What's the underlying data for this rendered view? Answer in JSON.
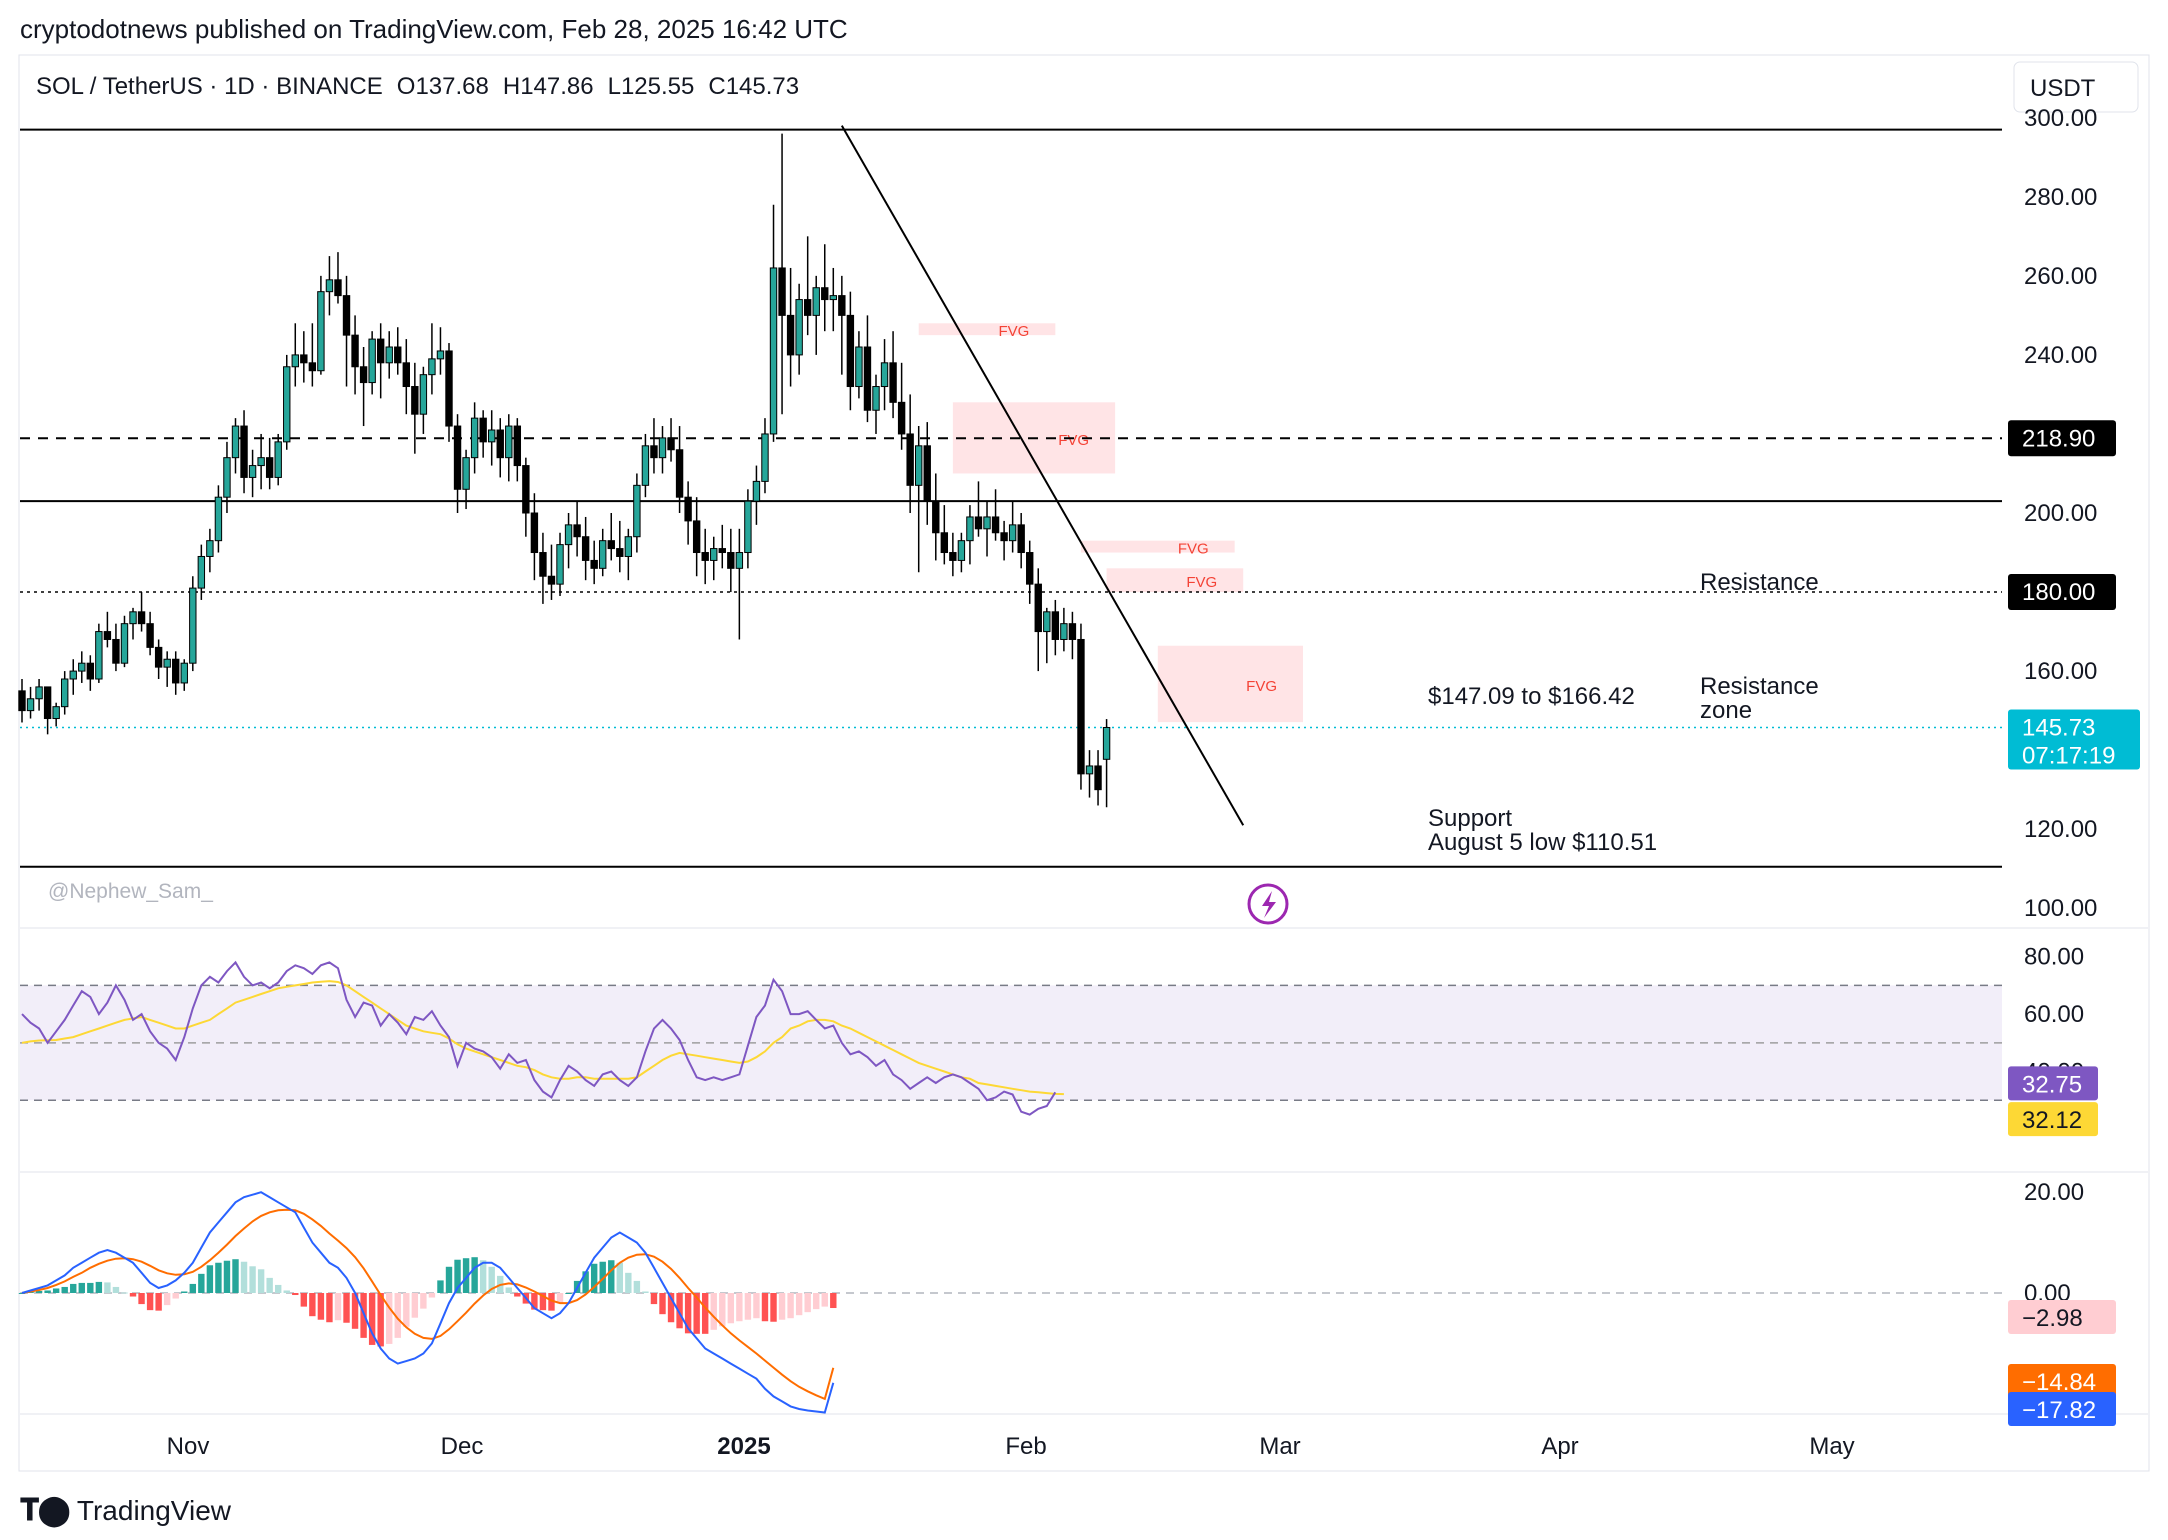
{
  "header": {
    "published": "cryptodotnews published on TradingView.com, Feb 28, 2025 16:42 UTC"
  },
  "footer": {
    "brand": "TradingView"
  },
  "chart_data": {
    "type": "candlestick",
    "symbol_line": "SOL / TetherUS · 1D · BINANCE",
    "ohlc": {
      "open": "O137.68",
      "high": "H147.86",
      "low": "L125.55",
      "close": "C145.73"
    },
    "currency": "USDT",
    "watermark": "@Nephew_Sam_",
    "x_labels": [
      "Nov",
      "Dec",
      "2025",
      "Feb",
      "Mar",
      "Apr",
      "May"
    ],
    "price_axis": {
      "ylim": [
        95,
        305
      ],
      "ticks": [
        {
          "v": 300,
          "label": "300.00"
        },
        {
          "v": 280,
          "label": "280.00"
        },
        {
          "v": 260,
          "label": "260.00"
        },
        {
          "v": 240,
          "label": "240.00"
        },
        {
          "v": 200,
          "label": "200.00"
        },
        {
          "v": 160,
          "label": "160.00"
        },
        {
          "v": 120,
          "label": "120.00"
        },
        {
          "v": 100,
          "label": "100.00"
        }
      ]
    },
    "price_badges": [
      {
        "v": 218.9,
        "label": "218.90",
        "color": "#000000"
      },
      {
        "v": 180,
        "label": "180.00",
        "color": "#000000"
      },
      {
        "v": 145.73,
        "label": "145.73",
        "sub": "07:17:19",
        "color": "#00bcd4"
      }
    ],
    "levels": [
      {
        "v": 297,
        "style": "solid"
      },
      {
        "v": 218.9,
        "style": "dashed"
      },
      {
        "v": 203,
        "style": "solid"
      },
      {
        "v": 180,
        "style": "dotted"
      },
      {
        "v": 145.73,
        "style": "last"
      },
      {
        "v": 110.51,
        "style": "solid"
      }
    ],
    "fvg": [
      {
        "x0": 105,
        "x1": 121,
        "y0": 245,
        "y1": 248,
        "label": "FVG"
      },
      {
        "x0": 109,
        "x1": 128,
        "y0": 210,
        "y1": 228,
        "label": "FVG"
      },
      {
        "x0": 124,
        "x1": 142,
        "y0": 190,
        "y1": 193,
        "label": "FVG"
      },
      {
        "x0": 127,
        "x1": 143,
        "y0": 180,
        "y1": 186,
        "label": "FVG"
      },
      {
        "x0": 133,
        "x1": 150,
        "y0": 147.09,
        "y1": 166.42,
        "label": "FVG"
      }
    ],
    "trendline": {
      "x0": 96,
      "y0": 298,
      "x1": 143,
      "y1": 121
    },
    "annotations": {
      "resistance": "Resistance",
      "range_text": "$147.09 to $166.42",
      "resistance_zone_1": "Resistance",
      "resistance_zone_2": "zone",
      "support_1": "Support",
      "support_2": "August 5 low $110.51"
    },
    "candles": [
      [
        155,
        158,
        147,
        150
      ],
      [
        150,
        156,
        148,
        153
      ],
      [
        153,
        158,
        150,
        156
      ],
      [
        156,
        155,
        144,
        148
      ],
      [
        148,
        152,
        146,
        151
      ],
      [
        151,
        160,
        149,
        158
      ],
      [
        158,
        163,
        154,
        160
      ],
      [
        160,
        165,
        157,
        162
      ],
      [
        162,
        164,
        155,
        158
      ],
      [
        158,
        172,
        157,
        170
      ],
      [
        170,
        175,
        166,
        168
      ],
      [
        168,
        172,
        160,
        162
      ],
      [
        162,
        174,
        161,
        172
      ],
      [
        172,
        176,
        168,
        175
      ],
      [
        175,
        180,
        170,
        172
      ],
      [
        172,
        175,
        164,
        166
      ],
      [
        166,
        168,
        158,
        161
      ],
      [
        161,
        165,
        156,
        163
      ],
      [
        163,
        165,
        154,
        157
      ],
      [
        157,
        163,
        155,
        162
      ],
      [
        162,
        184,
        160,
        181
      ],
      [
        181,
        192,
        178,
        189
      ],
      [
        189,
        196,
        185,
        193
      ],
      [
        193,
        207,
        190,
        204
      ],
      [
        204,
        218,
        200,
        214
      ],
      [
        214,
        224,
        210,
        222
      ],
      [
        222,
        226,
        205,
        209
      ],
      [
        209,
        216,
        204,
        212
      ],
      [
        212,
        220,
        206,
        214
      ],
      [
        214,
        219,
        206,
        209
      ],
      [
        209,
        220,
        207,
        218
      ],
      [
        218,
        240,
        216,
        237
      ],
      [
        237,
        248,
        232,
        240
      ],
      [
        240,
        246,
        233,
        238
      ],
      [
        238,
        248,
        232,
        236
      ],
      [
        236,
        260,
        235,
        256
      ],
      [
        256,
        265,
        250,
        259
      ],
      [
        259,
        266,
        253,
        255
      ],
      [
        255,
        260,
        232,
        245
      ],
      [
        245,
        250,
        230,
        237
      ],
      [
        237,
        242,
        222,
        233
      ],
      [
        233,
        246,
        230,
        244
      ],
      [
        244,
        248,
        229,
        238
      ],
      [
        238,
        246,
        234,
        242
      ],
      [
        242,
        247,
        235,
        238
      ],
      [
        238,
        244,
        225,
        232
      ],
      [
        232,
        238,
        215,
        225
      ],
      [
        225,
        237,
        220,
        235
      ],
      [
        235,
        248,
        230,
        239
      ],
      [
        239,
        247,
        235,
        241
      ],
      [
        241,
        243,
        218,
        222
      ],
      [
        222,
        225,
        200,
        206
      ],
      [
        206,
        216,
        201,
        214
      ],
      [
        214,
        228,
        210,
        224
      ],
      [
        224,
        226,
        214,
        218
      ],
      [
        218,
        226,
        212,
        221
      ],
      [
        221,
        224,
        209,
        214
      ],
      [
        214,
        225,
        208,
        222
      ],
      [
        222,
        224,
        208,
        212
      ],
      [
        212,
        214,
        194,
        200
      ],
      [
        200,
        205,
        183,
        190
      ],
      [
        190,
        195,
        177,
        184
      ],
      [
        184,
        192,
        178,
        182
      ],
      [
        182,
        195,
        179,
        192
      ],
      [
        192,
        200,
        186,
        197
      ],
      [
        197,
        203,
        189,
        194
      ],
      [
        194,
        199,
        183,
        188
      ],
      [
        188,
        193,
        182,
        186
      ],
      [
        186,
        196,
        184,
        193
      ],
      [
        193,
        200,
        188,
        191
      ],
      [
        191,
        198,
        185,
        189
      ],
      [
        189,
        196,
        183,
        194
      ],
      [
        194,
        210,
        190,
        207
      ],
      [
        207,
        220,
        204,
        217
      ],
      [
        217,
        224,
        210,
        214
      ],
      [
        214,
        222,
        210,
        219
      ],
      [
        219,
        224,
        213,
        216
      ],
      [
        216,
        222,
        200,
        204
      ],
      [
        204,
        208,
        192,
        198
      ],
      [
        198,
        204,
        184,
        190
      ],
      [
        190,
        196,
        182,
        188
      ],
      [
        188,
        194,
        183,
        191
      ],
      [
        191,
        197,
        186,
        190
      ],
      [
        190,
        196,
        180,
        186
      ],
      [
        186,
        196,
        168,
        190
      ],
      [
        190,
        206,
        186,
        203
      ],
      [
        203,
        212,
        197,
        208
      ],
      [
        208,
        224,
        205,
        220
      ],
      [
        220,
        278,
        218,
        262
      ],
      [
        262,
        296,
        225,
        250
      ],
      [
        250,
        262,
        232,
        240
      ],
      [
        240,
        258,
        235,
        254
      ],
      [
        254,
        270,
        245,
        250
      ],
      [
        250,
        260,
        240,
        257
      ],
      [
        257,
        268,
        246,
        254
      ],
      [
        254,
        262,
        246,
        255
      ],
      [
        255,
        260,
        235,
        250
      ],
      [
        250,
        256,
        226,
        232
      ],
      [
        232,
        246,
        229,
        242
      ],
      [
        242,
        250,
        223,
        226
      ],
      [
        226,
        235,
        220,
        232
      ],
      [
        232,
        244,
        226,
        238
      ],
      [
        238,
        246,
        224,
        228
      ],
      [
        228,
        238,
        216,
        220
      ],
      [
        220,
        230,
        200,
        207
      ],
      [
        207,
        222,
        185,
        217
      ],
      [
        217,
        223,
        197,
        203
      ],
      [
        203,
        210,
        188,
        195
      ],
      [
        195,
        202,
        187,
        190
      ],
      [
        190,
        195,
        184,
        188
      ],
      [
        188,
        195,
        185,
        193
      ],
      [
        193,
        202,
        187,
        199
      ],
      [
        199,
        208,
        194,
        196
      ],
      [
        196,
        203,
        189,
        199
      ],
      [
        199,
        206,
        193,
        195
      ],
      [
        195,
        198,
        188,
        193
      ],
      [
        193,
        203,
        190,
        197
      ],
      [
        197,
        200,
        186,
        190
      ],
      [
        190,
        193,
        177,
        182
      ],
      [
        182,
        186,
        160,
        170
      ],
      [
        170,
        176,
        162,
        175
      ],
      [
        175,
        178,
        164,
        168
      ],
      [
        168,
        176,
        165,
        172
      ],
      [
        172,
        175,
        163,
        168
      ],
      [
        168,
        172,
        130,
        134
      ],
      [
        134,
        140,
        128,
        136
      ],
      [
        136,
        140,
        126,
        130
      ],
      [
        137.68,
        147.86,
        125.55,
        145.73
      ]
    ],
    "rsi": {
      "ylim": [
        5,
        90
      ],
      "ticks": [
        {
          "v": 80,
          "label": "80.00"
        },
        {
          "v": 60,
          "label": "60.00"
        },
        {
          "v": 40,
          "label": "40.00"
        }
      ],
      "band": [
        30,
        70
      ],
      "values": [
        60,
        57,
        55,
        50,
        54,
        58,
        63,
        68,
        66,
        60,
        64,
        70,
        65,
        58,
        60,
        54,
        50,
        48,
        44,
        52,
        62,
        70,
        73,
        71,
        75,
        78,
        73,
        70,
        71,
        69,
        71,
        75,
        77,
        76,
        74,
        77,
        78,
        76,
        65,
        59,
        64,
        63,
        56,
        60,
        57,
        53,
        59,
        58,
        61,
        56,
        52,
        42,
        50,
        48,
        47,
        45,
        41,
        46,
        43,
        44,
        37,
        33,
        31,
        37,
        42,
        40,
        37,
        35,
        39,
        40,
        37,
        35,
        38,
        47,
        55,
        58,
        55,
        51,
        44,
        38,
        37,
        38,
        37,
        38,
        39,
        49,
        59,
        63,
        72,
        68,
        60,
        60,
        61,
        58,
        55,
        56,
        50,
        46,
        47,
        45,
        42,
        44,
        39,
        37,
        34,
        36,
        38,
        36,
        38,
        39,
        38,
        36,
        34,
        30,
        31,
        33,
        32,
        26,
        25,
        27,
        28,
        32.75
      ],
      "ma": [
        50,
        50.5,
        50.8,
        50.9,
        51,
        51.5,
        52,
        53,
        54,
        55,
        56,
        57,
        58,
        58.5,
        59,
        58,
        57,
        56,
        55,
        55,
        56,
        57,
        58,
        60,
        62,
        64,
        65,
        66,
        67,
        68,
        69,
        69.5,
        70,
        70.5,
        71,
        71.3,
        71.5,
        71.2,
        70,
        68,
        66,
        64,
        62,
        60,
        58,
        56,
        55,
        54,
        53.5,
        53,
        51.5,
        49.5,
        48,
        47,
        46,
        45,
        44,
        43,
        42,
        41.5,
        40.5,
        39,
        38,
        37.5,
        37.5,
        38,
        38,
        37.5,
        37.5,
        37.5,
        37.5,
        37.5,
        38,
        40,
        42,
        44,
        45.5,
        46.5,
        46,
        45.5,
        45,
        44.5,
        44,
        43.5,
        43,
        43.5,
        45,
        47,
        50,
        52,
        55,
        56,
        57.5,
        58,
        58,
        57.5,
        56,
        55,
        53.5,
        52,
        50.5,
        49,
        47.5,
        46,
        44.5,
        43,
        42,
        41,
        40,
        39,
        38,
        37.5,
        36,
        35.5,
        35,
        34.5,
        34,
        33.5,
        33,
        32.8,
        32.5,
        32.2,
        32.12
      ],
      "badges": [
        {
          "v": 32.75,
          "label": "32.75",
          "color": "#7e57c2"
        },
        {
          "v": 32.12,
          "label": "32.12",
          "color": "#fdd835"
        }
      ]
    },
    "macd": {
      "ylim": [
        -24,
        24
      ],
      "ticks": [
        {
          "v": 20,
          "label": "20.00"
        },
        {
          "v": 0,
          "label": "0.00"
        }
      ],
      "macd_line": [
        0,
        0.5,
        1,
        1.5,
        2.5,
        3.5,
        5,
        6,
        7,
        8,
        8.5,
        8,
        7,
        6,
        4,
        2,
        1,
        1.5,
        2.5,
        4,
        6,
        9,
        12,
        14,
        16,
        18,
        19,
        19.5,
        20,
        19,
        18,
        17,
        16,
        13,
        10,
        8,
        6,
        5,
        3,
        0,
        -4,
        -8,
        -11,
        -13,
        -14,
        -13.5,
        -13,
        -12,
        -10,
        -6,
        -2,
        1,
        3,
        5,
        6,
        6,
        5,
        3,
        1,
        -1,
        -3,
        -4,
        -5,
        -4,
        -2,
        1,
        4,
        7,
        9,
        11,
        12,
        11,
        10,
        8,
        5,
        2,
        -1,
        -4,
        -7,
        -9,
        -11,
        -12,
        -13,
        -14,
        -15,
        -16,
        -17,
        -19,
        -20.5,
        -21.5,
        -22.5,
        -23,
        -23.3,
        -23.5,
        -23.7,
        -17.82
      ],
      "signal": [
        0,
        0.3,
        0.6,
        1,
        1.6,
        2.3,
        3.2,
        4,
        5,
        5.8,
        6.4,
        6.8,
        6.9,
        6.7,
        6.2,
        5.4,
        4.5,
        3.9,
        3.6,
        3.7,
        4.2,
        5.2,
        6.5,
        8,
        9.6,
        11.3,
        12.8,
        14.2,
        15.3,
        16,
        16.4,
        16.5,
        16.4,
        15.7,
        14.6,
        13.3,
        11.8,
        10.4,
        8.9,
        7.1,
        4.9,
        2.3,
        -0.4,
        -2.9,
        -5.1,
        -6.8,
        -8.1,
        -8.9,
        -9.1,
        -8.5,
        -7.2,
        -5.6,
        -3.9,
        -2.1,
        -0.5,
        0.8,
        1.6,
        1.9,
        1.7,
        1.1,
        0.3,
        -0.6,
        -1.5,
        -2,
        -2,
        -1.4,
        -0.3,
        1.2,
        2.8,
        4.5,
        6,
        7,
        7.6,
        7.7,
        7.2,
        6.2,
        4.8,
        3,
        1,
        -0.9,
        -2.9,
        -4.7,
        -6.4,
        -8,
        -9.4,
        -10.7,
        -12,
        -13.4,
        -14.8,
        -16.2,
        -17.5,
        -18.6,
        -19.5,
        -20.3,
        -21,
        -14.84
      ],
      "badges": [
        {
          "v": -2.98,
          "label": "−2.98",
          "color": "#ffcdd2"
        },
        {
          "v": -14.84,
          "label": "−14.84",
          "color": "#ff6d00"
        },
        {
          "v": -17.82,
          "label": "−17.82",
          "color": "#2962ff"
        }
      ]
    }
  }
}
